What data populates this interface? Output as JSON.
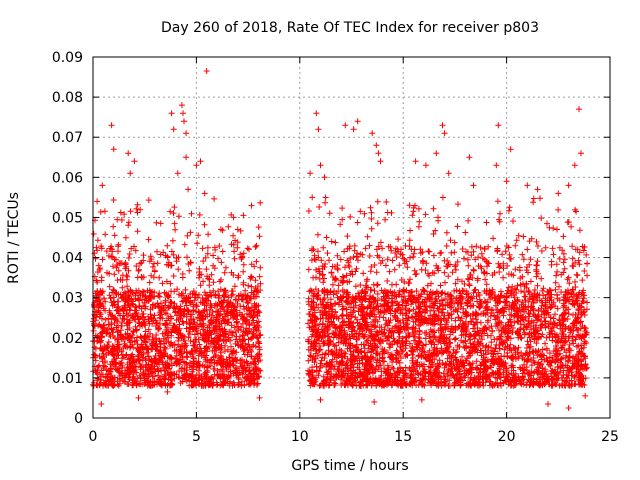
{
  "chart_data": {
    "type": "scatter",
    "title": "Day 260 of 2018, Rate Of TEC Index for receiver p803",
    "xlabel": "GPS time / hours",
    "ylabel": "ROTI / TECUs",
    "xlim": [
      0,
      25
    ],
    "ylim": [
      0,
      0.09
    ],
    "xticks": [
      0,
      5,
      10,
      15,
      20,
      25
    ],
    "xtick_labels": [
      "0",
      "5",
      "10",
      "15",
      "20",
      "25"
    ],
    "yticks": [
      0,
      0.01,
      0.02,
      0.03,
      0.04,
      0.05,
      0.06,
      0.07,
      0.08,
      0.09
    ],
    "ytick_labels": [
      "0",
      "0.01",
      "0.02",
      "0.03",
      "0.04",
      "0.05",
      "0.06",
      "0.07",
      "0.08",
      "0.09"
    ],
    "grid": true,
    "marker": "plus",
    "color": "#ff0000",
    "series": [
      {
        "name": "ROTI",
        "segments": [
          [
            0,
            8.1
          ],
          [
            10.4,
            23.9
          ]
        ],
        "points": [
          [
            0.05,
            0.0235
          ],
          [
            0.2,
            0.054
          ],
          [
            0.3,
            0.028
          ],
          [
            0.4,
            0.0035
          ],
          [
            0.45,
            0.058
          ],
          [
            0.9,
            0.073
          ],
          [
            1.0,
            0.067
          ],
          [
            1.7,
            0.066
          ],
          [
            1.8,
            0.061
          ],
          [
            2.0,
            0.064
          ],
          [
            2.2,
            0.005
          ],
          [
            3.6,
            0.0065
          ],
          [
            3.8,
            0.076
          ],
          [
            3.9,
            0.072
          ],
          [
            4.1,
            0.061
          ],
          [
            4.3,
            0.078
          ],
          [
            4.35,
            0.076
          ],
          [
            4.4,
            0.074
          ],
          [
            4.5,
            0.071
          ],
          [
            4.5,
            0.065
          ],
          [
            4.6,
            0.057
          ],
          [
            5.0,
            0.063
          ],
          [
            5.2,
            0.064
          ],
          [
            5.5,
            0.0865
          ],
          [
            5.4,
            0.056
          ],
          [
            6.8,
            0.05
          ],
          [
            7.0,
            0.047
          ],
          [
            7.2,
            0.04
          ],
          [
            7.9,
            0.039
          ],
          [
            8.05,
            0.005
          ],
          [
            10.5,
            0.061
          ],
          [
            10.6,
            0.055
          ],
          [
            10.8,
            0.076
          ],
          [
            10.9,
            0.072
          ],
          [
            11.0,
            0.063
          ],
          [
            11.2,
            0.06
          ],
          [
            11.0,
            0.0045
          ],
          [
            12.2,
            0.073
          ],
          [
            12.6,
            0.072
          ],
          [
            12.8,
            0.074
          ],
          [
            13.5,
            0.071
          ],
          [
            13.7,
            0.068
          ],
          [
            13.8,
            0.066
          ],
          [
            13.9,
            0.064
          ],
          [
            13.6,
            0.004
          ],
          [
            15.6,
            0.064
          ],
          [
            15.9,
            0.0045
          ],
          [
            16.1,
            0.063
          ],
          [
            16.6,
            0.066
          ],
          [
            16.9,
            0.073
          ],
          [
            17.0,
            0.071
          ],
          [
            17.2,
            0.061
          ],
          [
            18.2,
            0.065
          ],
          [
            18.4,
            0.058
          ],
          [
            19.5,
            0.063
          ],
          [
            19.6,
            0.073
          ],
          [
            20.0,
            0.059
          ],
          [
            20.2,
            0.067
          ],
          [
            21.0,
            0.058
          ],
          [
            21.5,
            0.057
          ],
          [
            22.0,
            0.0035
          ],
          [
            22.5,
            0.056
          ],
          [
            23.0,
            0.058
          ],
          [
            23.3,
            0.063
          ],
          [
            23.5,
            0.077
          ],
          [
            23.6,
            0.066
          ],
          [
            23.8,
            0.0055
          ],
          [
            23.0,
            0.0025
          ]
        ]
      }
    ]
  }
}
